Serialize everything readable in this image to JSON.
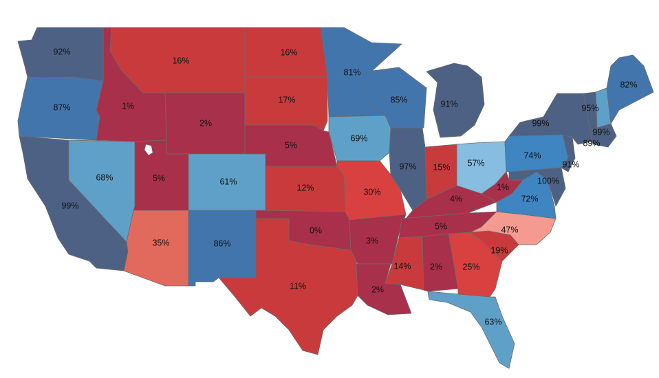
{
  "colors": {
    "dark_red": "#a9304a",
    "red": "#c93a3c",
    "bright_red": "#d94040",
    "coral": "#e26a5c",
    "salmon": "#f49a90",
    "light_blue": "#5fa0c8",
    "pale_blue": "#86bde0",
    "mid_blue": "#3f85c2",
    "steel_blue": "#4375ad",
    "slate_blue": "#4d6185",
    "border": "#6b6b6b"
  },
  "states": [
    {
      "code": "WA",
      "value": "92%",
      "color": "slate_blue"
    },
    {
      "code": "OR",
      "value": "87%",
      "color": "steel_blue"
    },
    {
      "code": "CA",
      "value": "99%",
      "color": "slate_blue"
    },
    {
      "code": "NV",
      "value": "68%",
      "color": "light_blue"
    },
    {
      "code": "ID",
      "value": "1%",
      "color": "dark_red"
    },
    {
      "code": "MT",
      "value": "16%",
      "color": "red"
    },
    {
      "code": "WY",
      "value": "2%",
      "color": "dark_red"
    },
    {
      "code": "UT",
      "value": "5%",
      "color": "dark_red"
    },
    {
      "code": "AZ",
      "value": "35%",
      "color": "coral"
    },
    {
      "code": "CO",
      "value": "61%",
      "color": "light_blue"
    },
    {
      "code": "NM",
      "value": "86%",
      "color": "steel_blue"
    },
    {
      "code": "ND",
      "value": "16%",
      "color": "red"
    },
    {
      "code": "SD",
      "value": "17%",
      "color": "red"
    },
    {
      "code": "NE",
      "value": "5%",
      "color": "dark_red"
    },
    {
      "code": "KS",
      "value": "12%",
      "color": "red"
    },
    {
      "code": "OK",
      "value": "0%",
      "color": "dark_red"
    },
    {
      "code": "TX",
      "value": "11%",
      "color": "red"
    },
    {
      "code": "MN",
      "value": "81%",
      "color": "steel_blue"
    },
    {
      "code": "IA",
      "value": "69%",
      "color": "light_blue"
    },
    {
      "code": "MO",
      "value": "30%",
      "color": "bright_red"
    },
    {
      "code": "AR",
      "value": "3%",
      "color": "dark_red"
    },
    {
      "code": "LA",
      "value": "2%",
      "color": "dark_red"
    },
    {
      "code": "WI",
      "value": "85%",
      "color": "steel_blue"
    },
    {
      "code": "IL",
      "value": "97%",
      "color": "slate_blue"
    },
    {
      "code": "MI",
      "value": "91%",
      "color": "slate_blue"
    },
    {
      "code": "IN",
      "value": "15%",
      "color": "red"
    },
    {
      "code": "OH",
      "value": "57%",
      "color": "pale_blue"
    },
    {
      "code": "KY",
      "value": "4%",
      "color": "dark_red"
    },
    {
      "code": "TN",
      "value": "5%",
      "color": "dark_red"
    },
    {
      "code": "MS",
      "value": "14%",
      "color": "red"
    },
    {
      "code": "AL",
      "value": "2%",
      "color": "dark_red"
    },
    {
      "code": "GA",
      "value": "25%",
      "color": "bright_red"
    },
    {
      "code": "FL",
      "value": "63%",
      "color": "light_blue"
    },
    {
      "code": "SC",
      "value": "19%",
      "color": "red"
    },
    {
      "code": "NC",
      "value": "47%",
      "color": "salmon"
    },
    {
      "code": "VA",
      "value": "72%",
      "color": "mid_blue"
    },
    {
      "code": "WV",
      "value": "1%",
      "color": "dark_red"
    },
    {
      "code": "PA",
      "value": "74%",
      "color": "mid_blue"
    },
    {
      "code": "NY",
      "value": "99%",
      "color": "slate_blue"
    },
    {
      "code": "NJ",
      "value": "91%",
      "color": "slate_blue"
    },
    {
      "code": "MD",
      "value": "100%",
      "color": "slate_blue"
    },
    {
      "code": "VT",
      "value": "95%",
      "color": "slate_blue"
    },
    {
      "code": "NH",
      "value": "99%",
      "color": "light_blue"
    },
    {
      "code": "MA",
      "value": "89%",
      "color": "slate_blue"
    },
    {
      "code": "ME",
      "value": "82%",
      "color": "steel_blue"
    }
  ]
}
